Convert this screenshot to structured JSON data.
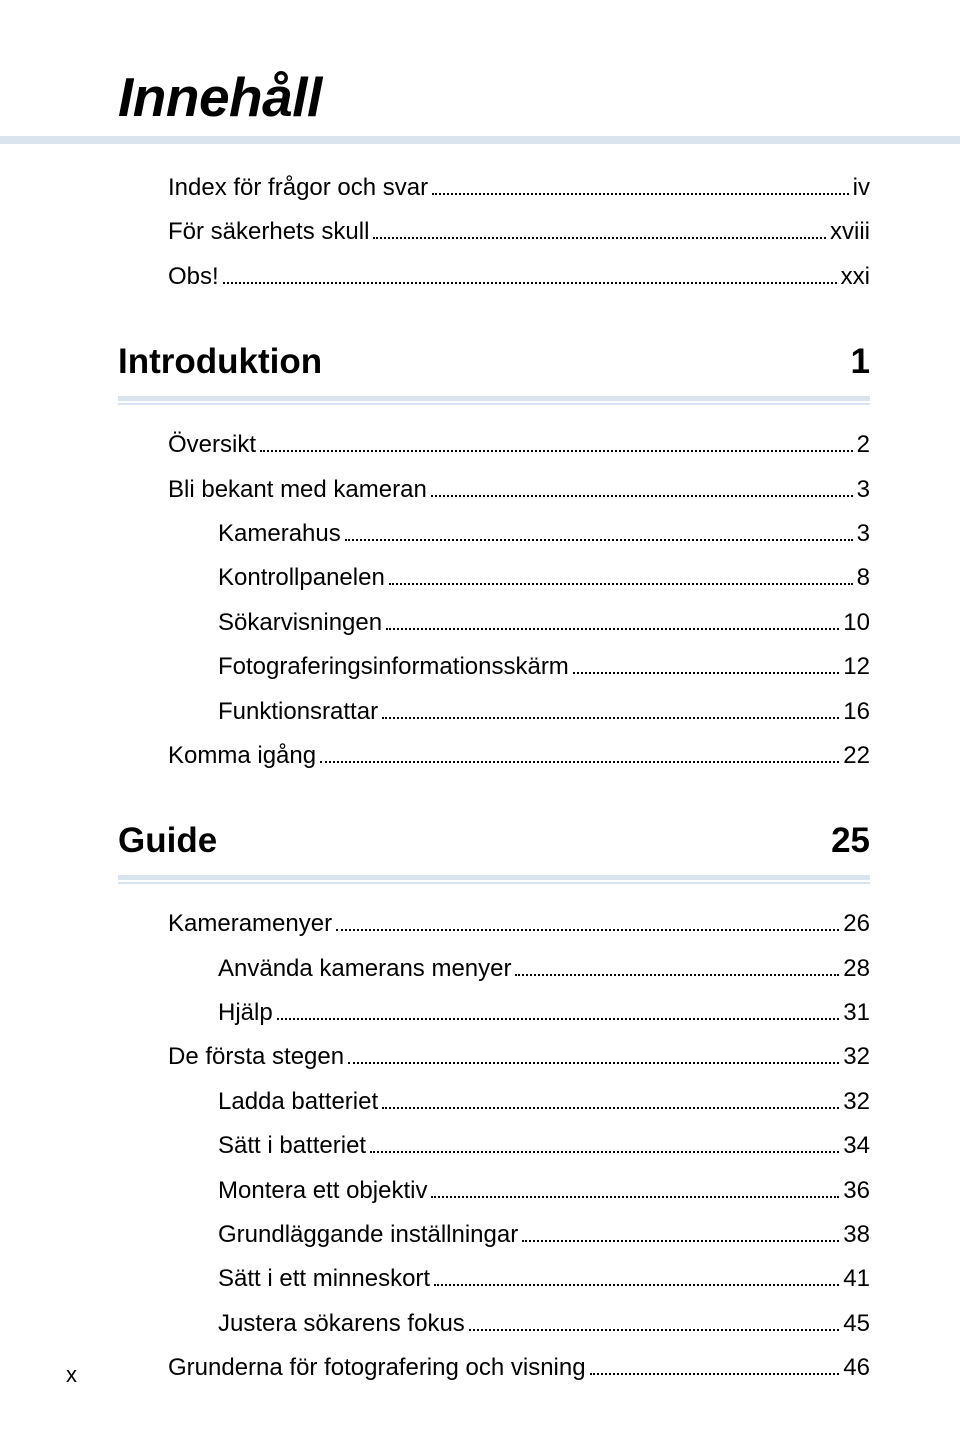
{
  "title": "Innehåll",
  "page_number": "x",
  "colors": {
    "underline_bar": "#d9e4ee",
    "text": "#000000",
    "background": "#ffffff"
  },
  "typography": {
    "title_fontsize_pt": 40,
    "section_fontsize_pt": 26,
    "body_fontsize_pt": 18,
    "font_family": "sans-serif",
    "title_italic": true,
    "title_bold": true
  },
  "top_entries": [
    {
      "label": "Index för frågor och svar",
      "page": "iv",
      "indent": 1
    },
    {
      "label": "För säkerhets skull",
      "page": "xviii",
      "indent": 1
    },
    {
      "label": "Obs!",
      "page": "xxi",
      "indent": 1
    }
  ],
  "sections": [
    {
      "title": "Introduktion",
      "page": "1",
      "entries": [
        {
          "label": "Översikt",
          "page": "2",
          "indent": 1
        },
        {
          "label": "Bli bekant med kameran",
          "page": "3",
          "indent": 1
        },
        {
          "label": "Kamerahus",
          "page": "3",
          "indent": 2
        },
        {
          "label": "Kontrollpanelen",
          "page": "8",
          "indent": 2
        },
        {
          "label": "Sökarvisningen",
          "page": "10",
          "indent": 2
        },
        {
          "label": "Fotograferingsinformationsskärm",
          "page": "12",
          "indent": 2
        },
        {
          "label": "Funktionsrattar",
          "page": "16",
          "indent": 2
        },
        {
          "label": "Komma igång",
          "page": "22",
          "indent": 1
        }
      ]
    },
    {
      "title": "Guide",
      "page": "25",
      "entries": [
        {
          "label": "Kameramenyer",
          "page": "26",
          "indent": 1
        },
        {
          "label": "Använda kamerans menyer",
          "page": "28",
          "indent": 2
        },
        {
          "label": "Hjälp",
          "page": "31",
          "indent": 2
        },
        {
          "label": "De första stegen",
          "page": "32",
          "indent": 1
        },
        {
          "label": "Ladda batteriet",
          "page": "32",
          "indent": 2
        },
        {
          "label": "Sätt i batteriet",
          "page": "34",
          "indent": 2
        },
        {
          "label": "Montera ett objektiv",
          "page": "36",
          "indent": 2
        },
        {
          "label": "Grundläggande inställningar",
          "page": "38",
          "indent": 2
        },
        {
          "label": "Sätt i ett minneskort",
          "page": "41",
          "indent": 2
        },
        {
          "label": "Justera sökarens fokus",
          "page": "45",
          "indent": 2
        },
        {
          "label": "Grunderna för fotografering och visning",
          "page": "46",
          "indent": 1
        }
      ]
    }
  ]
}
